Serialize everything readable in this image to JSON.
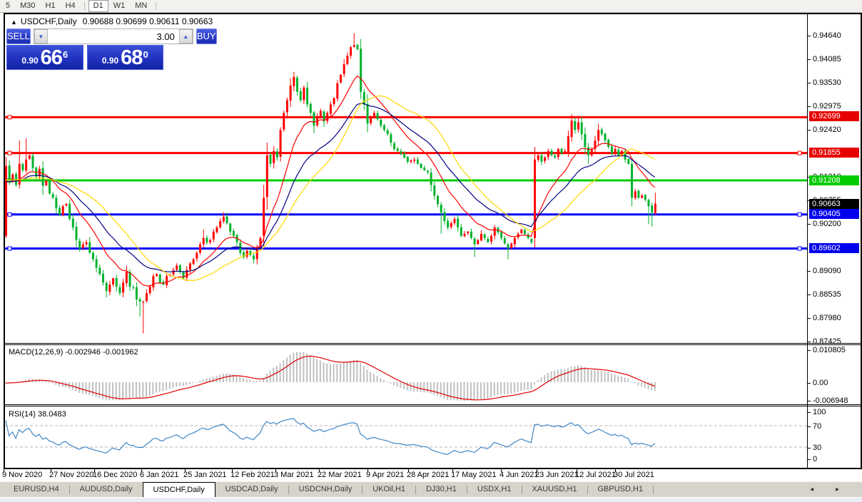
{
  "toolbar": {
    "timeframes": [
      "5",
      "M30",
      "H1",
      "H4",
      "|",
      "D1",
      "W1",
      "MN",
      "|"
    ],
    "active": "D1"
  },
  "chart": {
    "collapse_icon": "▲",
    "title_symbol": "USDCHF,Daily",
    "title_ohlc": "0.90688 0.90699 0.90611 0.90663"
  },
  "trade_widget": {
    "sell_label": "SELL",
    "buy_label": "BUY",
    "volume": "3.00",
    "down_arrow": "▼",
    "up_arrow": "▲",
    "bid": {
      "prefix": "0.90",
      "big": "66",
      "sup": "6"
    },
    "ask": {
      "prefix": "0.90",
      "big": "68",
      "sup": "0"
    }
  },
  "macd_pane": {
    "label": "MACD(12,26,9) -0.002946 -0.001962"
  },
  "rsi_pane": {
    "label": "RSI(14) 38.0483"
  },
  "price_axis": {
    "grid": [
      [
        "0.94640",
        49
      ],
      [
        "0.94085",
        82
      ],
      [
        "0.93530",
        115
      ],
      [
        "0.92975",
        148
      ],
      [
        "0.92420",
        181
      ],
      [
        "0.91310",
        247
      ],
      [
        "0.90755",
        280
      ],
      [
        "0.90200",
        313
      ],
      [
        "0.89090",
        379
      ],
      [
        "0.88535",
        412
      ],
      [
        "0.87980",
        445
      ],
      [
        "0.87425",
        478
      ]
    ],
    "badges": [
      [
        "0.92699",
        162,
        "#e60000"
      ],
      [
        "0.91855",
        213,
        "#e60000"
      ],
      [
        "0.91208",
        252,
        "#00cc00"
      ],
      [
        "0.90663",
        285,
        "#000000"
      ],
      [
        "0.90405",
        299,
        "#0000ee"
      ],
      [
        "0.89602",
        347,
        "#0000ee"
      ]
    ],
    "macd_ticks": [
      [
        "0.010805",
        490
      ],
      [
        "0.00",
        536
      ],
      [
        "-0.006948",
        561
      ]
    ],
    "rsi_ticks": [
      [
        "100",
        577
      ],
      [
        "70",
        597
      ],
      [
        "30",
        627
      ],
      [
        "0",
        643
      ]
    ]
  },
  "date_axis": [
    [
      "9 Nov 2020",
      3
    ],
    [
      "27 Nov 2020",
      69
    ],
    [
      "16 Dec 2020",
      130
    ],
    [
      "6 Jan 2021",
      196
    ],
    [
      "25 Jan 2021",
      257
    ],
    [
      "12 Feb 2021",
      323
    ],
    [
      "3 Mar 2021",
      384
    ],
    [
      "22 Mar 2021",
      445
    ],
    [
      "9 Apr 2021",
      513
    ],
    [
      "28 Apr 2021",
      570
    ],
    [
      "17 May 2021",
      632
    ],
    [
      "4 Jun 2021",
      700
    ],
    [
      "23 Jun 2021",
      750
    ],
    [
      "12 Jul 2021",
      806
    ],
    [
      "30 Jul 2021",
      860
    ]
  ],
  "tabs": {
    "items": [
      "EURUSD,H4",
      "AUDUSD,Daily",
      "USDCHF,Daily",
      "USDCAD,Daily",
      "USDCNH,Daily",
      "UKOil,H1",
      "DJ30,H1",
      "USDX,H1",
      "XAUUSD,H1",
      "GBPUSD,H1"
    ],
    "active": "USDCHF,Daily",
    "left_arrow": "◂",
    "right_arrow": "▸"
  },
  "colors": {
    "up_candle": "#ff0000",
    "down_candle": "#00b22d",
    "hline_red": "#ff0000",
    "hline_green": "#00cd00",
    "hline_blue": "#0000ff",
    "ma_fast": "#ff0000",
    "ma_mid": "#000080",
    "ma_slow": "#ffd700",
    "macd_hist": "#c0c0c0",
    "macd_signal": "#e00000",
    "rsi_line": "#3e86c6",
    "rsi_level": "#b4b4b4"
  },
  "chart_data": {
    "type": "candlestick",
    "symbol": "USDCHF",
    "period": "Daily",
    "ohlc_display": {
      "open": 0.90688,
      "high": 0.90699,
      "low": 0.90611,
      "close": 0.90663
    },
    "bars": 195,
    "y_axis_ticks": [
      0.9464,
      0.94085,
      0.9353,
      0.92975,
      0.9242,
      0.91865,
      0.9131,
      0.90755,
      0.902,
      0.89645,
      0.8909,
      0.88535,
      0.8798,
      0.87425
    ],
    "closes": [
      0.9155,
      0.912,
      0.9135,
      0.911,
      0.916,
      0.9145,
      0.917,
      0.918,
      0.915,
      0.913,
      0.9148,
      0.9108,
      0.912,
      0.909,
      0.908,
      0.9055,
      0.904,
      0.906,
      0.9065,
      0.903,
      0.901,
      0.898,
      0.896,
      0.897,
      0.8975,
      0.895,
      0.8935,
      0.8915,
      0.89,
      0.888,
      0.886,
      0.8875,
      0.889,
      0.887,
      0.8855,
      0.888,
      0.8905,
      0.887,
      0.8868,
      0.884,
      0.8835,
      0.8835,
      0.8855,
      0.887,
      0.8895,
      0.89,
      0.888,
      0.8875,
      0.8895,
      0.8898,
      0.891,
      0.892,
      0.8905,
      0.889,
      0.891,
      0.8925,
      0.8935,
      0.895,
      0.897,
      0.8985,
      0.8975,
      0.898,
      0.9,
      0.901,
      0.9025,
      0.9035,
      0.902,
      0.9,
      0.899,
      0.8975,
      0.895,
      0.894,
      0.8955,
      0.8945,
      0.8935,
      0.896,
      0.8985,
      0.908,
      0.918,
      0.916,
      0.919,
      0.9175,
      0.924,
      0.928,
      0.931,
      0.9345,
      0.9365,
      0.933,
      0.931,
      0.934,
      0.93,
      0.928,
      0.925,
      0.927,
      0.9285,
      0.926,
      0.928,
      0.93,
      0.9315,
      0.935,
      0.937,
      0.9395,
      0.9415,
      0.9435,
      0.944,
      0.943,
      0.933,
      0.93,
      0.9255,
      0.9268,
      0.928,
      0.9265,
      0.925,
      0.924,
      0.923,
      0.921,
      0.9195,
      0.919,
      0.9185,
      0.9175,
      0.9165,
      0.9168,
      0.917,
      0.916,
      0.915,
      0.9145,
      0.914,
      0.911,
      0.9085,
      0.9065,
      0.9045,
      0.9025,
      0.901,
      0.902,
      0.903,
      0.901,
      0.899,
      0.8995,
      0.9,
      0.8985,
      0.897,
      0.898,
      0.8995,
      0.8985,
      0.8975,
      0.899,
      0.901,
      0.8998,
      0.8985,
      0.8972,
      0.896,
      0.8972,
      0.8985,
      0.8995,
      0.9005,
      0.8995,
      0.8985,
      0.8975,
      0.917,
      0.918,
      0.9165,
      0.9175,
      0.919,
      0.918,
      0.9175,
      0.9195,
      0.9185,
      0.919,
      0.9225,
      0.9262,
      0.924,
      0.9258,
      0.923,
      0.92,
      0.918,
      0.9195,
      0.9215,
      0.924,
      0.923,
      0.9215,
      0.92,
      0.9185,
      0.9195,
      0.918,
      0.919,
      0.917,
      0.916,
      0.908,
      0.9095,
      0.908,
      0.9085,
      0.9075,
      0.906,
      0.9045,
      0.9066
    ],
    "candle_overrides": {
      "0": {
        "o": 0.899,
        "l": 0.8985
      },
      "4": {
        "h": 0.9215
      },
      "6": {
        "h": 0.922
      },
      "30": {
        "l": 0.8845
      },
      "40": {
        "l": 0.88
      },
      "41": {
        "l": 0.876
      },
      "59": {
        "h": 0.9005
      },
      "65": {
        "h": 0.9046
      },
      "74": {
        "l": 0.8925
      },
      "77": {
        "o": 0.899
      },
      "86": {
        "h": 0.9377
      },
      "92": {
        "l": 0.9232
      },
      "104": {
        "h": 0.9468
      },
      "130": {
        "l": 0.8995
      },
      "140": {
        "l": 0.894
      },
      "150": {
        "l": 0.8935
      },
      "158": {
        "o": 0.8985
      },
      "169": {
        "h": 0.9277
      },
      "171": {
        "h": 0.9273
      },
      "174": {
        "l": 0.916
      },
      "177": {
        "h": 0.9255
      },
      "187": {
        "o": 0.916,
        "l": 0.906
      },
      "192": {
        "l": 0.9018
      },
      "193": {
        "l": 0.9012
      },
      "194": {
        "h": 0.9092
      }
    },
    "moving_averages": [
      {
        "kind": "ema",
        "period": 13,
        "color": "#ff0000"
      },
      {
        "kind": "ema",
        "period": 26,
        "color": "#000080"
      },
      {
        "kind": "sma",
        "period": 30,
        "color": "#ffd700"
      }
    ],
    "horizontal_lines": [
      {
        "price": 0.92699,
        "color": "#ff0000",
        "right_handle": false
      },
      {
        "price": 0.91855,
        "color": "#ff0000",
        "right_handle": true
      },
      {
        "price": 0.91208,
        "color": "#00cd00",
        "right_handle": false
      },
      {
        "price": 0.90405,
        "color": "#0000ff",
        "right_handle": true
      },
      {
        "price": 0.89602,
        "color": "#0000ff",
        "right_handle": true
      }
    ],
    "current_price": 0.90663,
    "macd": {
      "fast": 12,
      "slow": 26,
      "signal_period": 9,
      "display_values": [
        -0.002946,
        -0.001962
      ],
      "axis_range": [
        0.010805,
        -0.006948
      ]
    },
    "rsi": {
      "period": 14,
      "display_value": 38.0483,
      "levels": [
        70,
        30
      ]
    }
  }
}
